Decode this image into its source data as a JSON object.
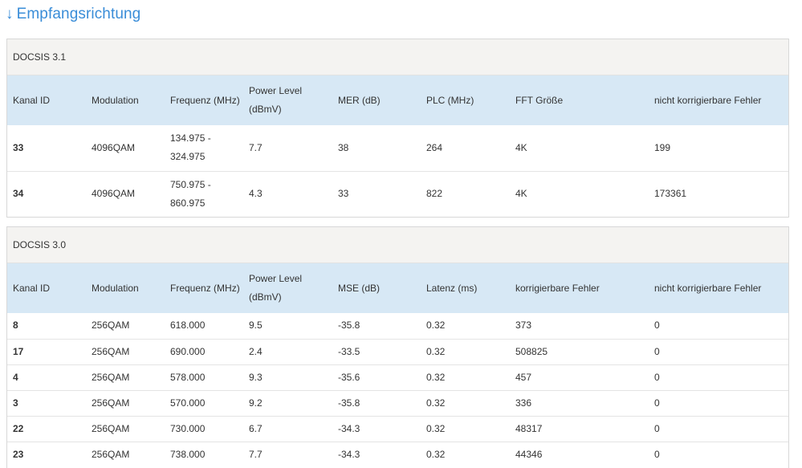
{
  "page": {
    "title_arrow": "↓",
    "title": "Empfangsrichtung"
  },
  "docsis31": {
    "heading": "DOCSIS 3.1",
    "columns": [
      "Kanal ID",
      "Modulation",
      "Frequenz (MHz)",
      "Power Level (dBmV)",
      "MER (dB)",
      "PLC (MHz)",
      "FFT Größe",
      "nicht korrigierbare Fehler"
    ],
    "rows": [
      [
        "33",
        "4096QAM",
        "134.975 - 324.975",
        "7.7",
        "38",
        "264",
        "4K",
        "199"
      ],
      [
        "34",
        "4096QAM",
        "750.975 - 860.975",
        "4.3",
        "33",
        "822",
        "4K",
        "173361"
      ]
    ]
  },
  "docsis30": {
    "heading": "DOCSIS 3.0",
    "columns": [
      "Kanal ID",
      "Modulation",
      "Frequenz (MHz)",
      "Power Level (dBmV)",
      "MSE (dB)",
      "Latenz (ms)",
      "korrigierbare Fehler",
      "nicht korrigierbare Fehler"
    ],
    "rows": [
      [
        "8",
        "256QAM",
        "618.000",
        "9.5",
        "-35.8",
        "0.32",
        "373",
        "0"
      ],
      [
        "17",
        "256QAM",
        "690.000",
        "2.4",
        "-33.5",
        "0.32",
        "508825",
        "0"
      ],
      [
        "4",
        "256QAM",
        "578.000",
        "9.3",
        "-35.6",
        "0.32",
        "457",
        "0"
      ],
      [
        "3",
        "256QAM",
        "570.000",
        "9.2",
        "-35.8",
        "0.32",
        "336",
        "0"
      ],
      [
        "22",
        "256QAM",
        "730.000",
        "6.7",
        "-34.3",
        "0.32",
        "48317",
        "0"
      ],
      [
        "23",
        "256QAM",
        "738.000",
        "7.7",
        "-34.3",
        "0.32",
        "44346",
        "0"
      ]
    ]
  }
}
